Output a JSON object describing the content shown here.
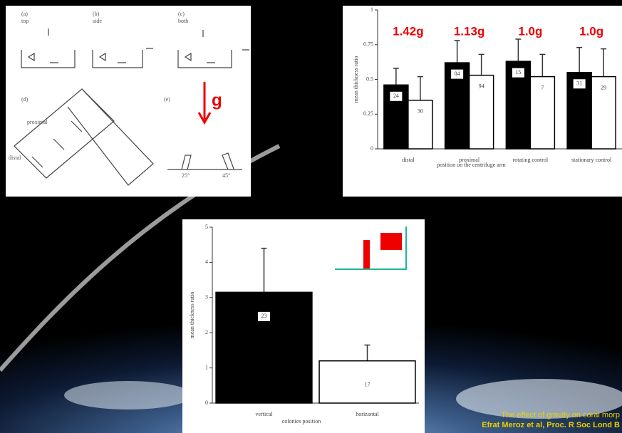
{
  "chart_data": [
    {
      "type": "bar",
      "categories": [
        "distal",
        "proximal",
        "rotating control",
        "stationary control"
      ],
      "series": [
        {
          "color": "#000000",
          "values": [
            0.46,
            0.62,
            0.63,
            0.55
          ],
          "errors": [
            0.12,
            0.16,
            0.16,
            0.18
          ],
          "n": [
            24,
            84,
            15,
            31
          ]
        },
        {
          "color": "#ffffff",
          "values": [
            0.35,
            0.53,
            0.52,
            0.52
          ],
          "errors": [
            0.17,
            0.15,
            0.16,
            0.2
          ],
          "n": [
            30,
            94,
            7,
            29
          ]
        }
      ],
      "annotations": [
        "1.42g",
        "1.13g",
        "1.0g",
        "1.0g"
      ],
      "x_label": "position on the centrifuge arm",
      "y_label": "mean thickness ratio",
      "ylim": [
        0,
        1
      ],
      "yticks": [
        0,
        0.25,
        0.5,
        0.75,
        1
      ]
    },
    {
      "type": "bar",
      "categories": [
        "vertical",
        "horizontal"
      ],
      "series": [
        {
          "colors": [
            "#000000",
            "#ffffff"
          ],
          "values": [
            3.15,
            1.2
          ],
          "errors": [
            1.25,
            0.45
          ],
          "n": [
            23,
            17
          ]
        }
      ],
      "x_label": "colonies position",
      "y_label": "mean thickness ratio",
      "ylim": [
        0,
        5
      ],
      "yticks": [
        0,
        1,
        2,
        3,
        4,
        5
      ]
    }
  ],
  "diagram": {
    "labels": [
      "(a)",
      "top",
      "(b)",
      "side",
      "(c)",
      "both",
      "(d)",
      "(e)",
      "proximal",
      "distal",
      "25°",
      "45°"
    ],
    "gravity": "g"
  },
  "caption": {
    "line1": "The effect of gravity on coral morp",
    "line2": "Efrat Meroz et al, Proc. R Soc Lond B"
  }
}
